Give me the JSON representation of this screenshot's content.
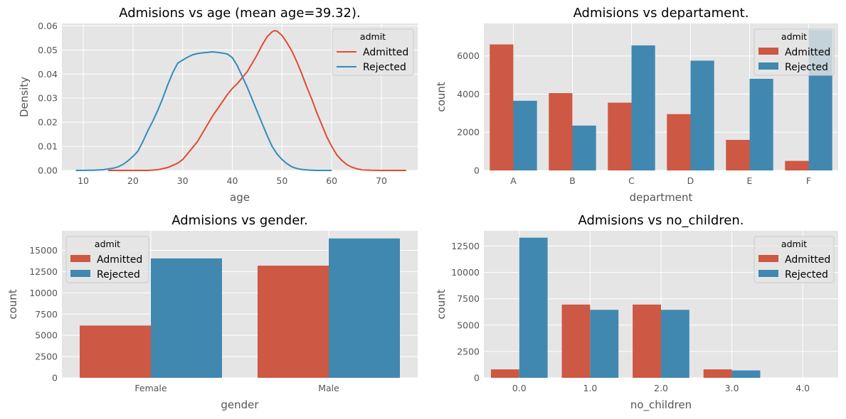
{
  "colors": {
    "admitted": "#E24A33",
    "rejected": "#348ABD",
    "admitted_bar": "#CD5843",
    "rejected_bar": "#4188B0",
    "panel": "#E5E5E5",
    "grid": "#FFFFFF"
  },
  "chart_data": [
    {
      "type": "line",
      "title": "Admisions vs age (mean age=39.32).",
      "xlabel": "age",
      "ylabel": "Density",
      "xlim": [
        5.7,
        77.3
      ],
      "ylim": [
        0,
        0.061
      ],
      "xticks": [
        "10",
        "20",
        "30",
        "40",
        "50",
        "60",
        "70"
      ],
      "yticks": [
        "0.00",
        "0.01",
        "0.02",
        "0.03",
        "0.04",
        "0.05",
        "0.06"
      ],
      "grid": true,
      "legend": {
        "title": "admit",
        "placement": "top-right",
        "entries": [
          "Admitted",
          "Rejected"
        ]
      },
      "series": [
        {
          "name": "Admitted",
          "x": [
            15,
            20,
            23,
            25,
            27,
            29,
            30,
            31,
            32,
            33,
            34,
            35,
            36,
            37,
            38,
            39,
            40,
            41,
            42,
            43,
            44,
            45,
            46,
            47,
            48,
            48.5,
            49,
            50,
            51,
            52,
            53,
            54,
            55,
            56,
            57,
            58,
            59,
            60,
            61,
            62,
            63,
            64,
            65,
            66,
            68,
            70,
            75
          ],
          "y": [
            0.0,
            0.0,
            0.0,
            0.0003,
            0.0012,
            0.003,
            0.0045,
            0.007,
            0.0095,
            0.012,
            0.0155,
            0.019,
            0.0225,
            0.0255,
            0.0285,
            0.0315,
            0.034,
            0.036,
            0.0385,
            0.041,
            0.0445,
            0.048,
            0.052,
            0.0555,
            0.0575,
            0.058,
            0.0578,
            0.056,
            0.053,
            0.0495,
            0.045,
            0.04,
            0.0345,
            0.0295,
            0.024,
            0.019,
            0.014,
            0.01,
            0.0065,
            0.0042,
            0.0025,
            0.0014,
            0.0007,
            0.0003,
            0.0001,
            0.0,
            0.0
          ]
        },
        {
          "name": "Rejected",
          "x": [
            8.5,
            12,
            14,
            16,
            17,
            18,
            19,
            20,
            21,
            22,
            23,
            24,
            25,
            26,
            27,
            28,
            29,
            30,
            31,
            32,
            33,
            34,
            35,
            36,
            37,
            38,
            39,
            40,
            41,
            42,
            43,
            44,
            45,
            46,
            47,
            48,
            49,
            50,
            51,
            52,
            53,
            54,
            55,
            56,
            57,
            58,
            60
          ],
          "y": [
            0.0,
            0.0001,
            0.0003,
            0.0009,
            0.0015,
            0.0025,
            0.004,
            0.0058,
            0.008,
            0.012,
            0.0165,
            0.0205,
            0.025,
            0.03,
            0.0355,
            0.0405,
            0.0445,
            0.0458,
            0.047,
            0.048,
            0.0485,
            0.0488,
            0.049,
            0.0492,
            0.049,
            0.0487,
            0.0483,
            0.0468,
            0.0435,
            0.039,
            0.0345,
            0.0295,
            0.0245,
            0.0195,
            0.0145,
            0.01,
            0.0068,
            0.0045,
            0.0028,
            0.0015,
            0.0008,
            0.0004,
            0.0002,
            0.0001,
            0.0,
            0.0,
            0.0
          ]
        }
      ]
    },
    {
      "type": "bar",
      "title": "Admisions vs departament.",
      "xlabel": "department",
      "ylabel": "count",
      "ylim": [
        0,
        7700
      ],
      "yticks": [
        0,
        2000,
        4000,
        6000
      ],
      "categories": [
        "A",
        "B",
        "C",
        "D",
        "E",
        "F"
      ],
      "grid": true,
      "legend": {
        "title": "admit",
        "placement": "top-right",
        "entries": [
          "Admitted",
          "Rejected"
        ]
      },
      "series": [
        {
          "name": "Admitted",
          "values": [
            6600,
            4050,
            3550,
            2950,
            1600,
            500
          ]
        },
        {
          "name": "Rejected",
          "values": [
            3650,
            2350,
            6550,
            5750,
            4800,
            7350
          ]
        }
      ]
    },
    {
      "type": "bar",
      "title": "Admisions vs gender.",
      "xlabel": "gender",
      "ylabel": "count",
      "ylim": [
        0,
        17300
      ],
      "yticks": [
        0,
        2500,
        5000,
        7500,
        10000,
        12500,
        15000
      ],
      "categories": [
        "Female",
        "Male"
      ],
      "grid": true,
      "legend": {
        "title": "admit",
        "placement": "top-left",
        "entries": [
          "Admitted",
          "Rejected"
        ]
      },
      "series": [
        {
          "name": "Admitted",
          "values": [
            6150,
            13200
          ]
        },
        {
          "name": "Rejected",
          "values": [
            14050,
            16400
          ]
        }
      ]
    },
    {
      "type": "bar",
      "title": "Admisions vs no_children.",
      "xlabel": "no_children",
      "ylabel": "count",
      "ylim": [
        0,
        13950
      ],
      "yticks": [
        0,
        2500,
        5000,
        7500,
        10000,
        12500
      ],
      "categories": [
        "0.0",
        "1.0",
        "2.0",
        "3.0",
        "4.0"
      ],
      "grid": true,
      "legend": {
        "title": "admit",
        "placement": "top-right",
        "entries": [
          "Admitted",
          "Rejected"
        ]
      },
      "series": [
        {
          "name": "Admitted",
          "values": [
            800,
            6950,
            6950,
            800,
            0
          ]
        },
        {
          "name": "Rejected",
          "values": [
            13300,
            6450,
            6450,
            700,
            0
          ]
        }
      ]
    }
  ]
}
